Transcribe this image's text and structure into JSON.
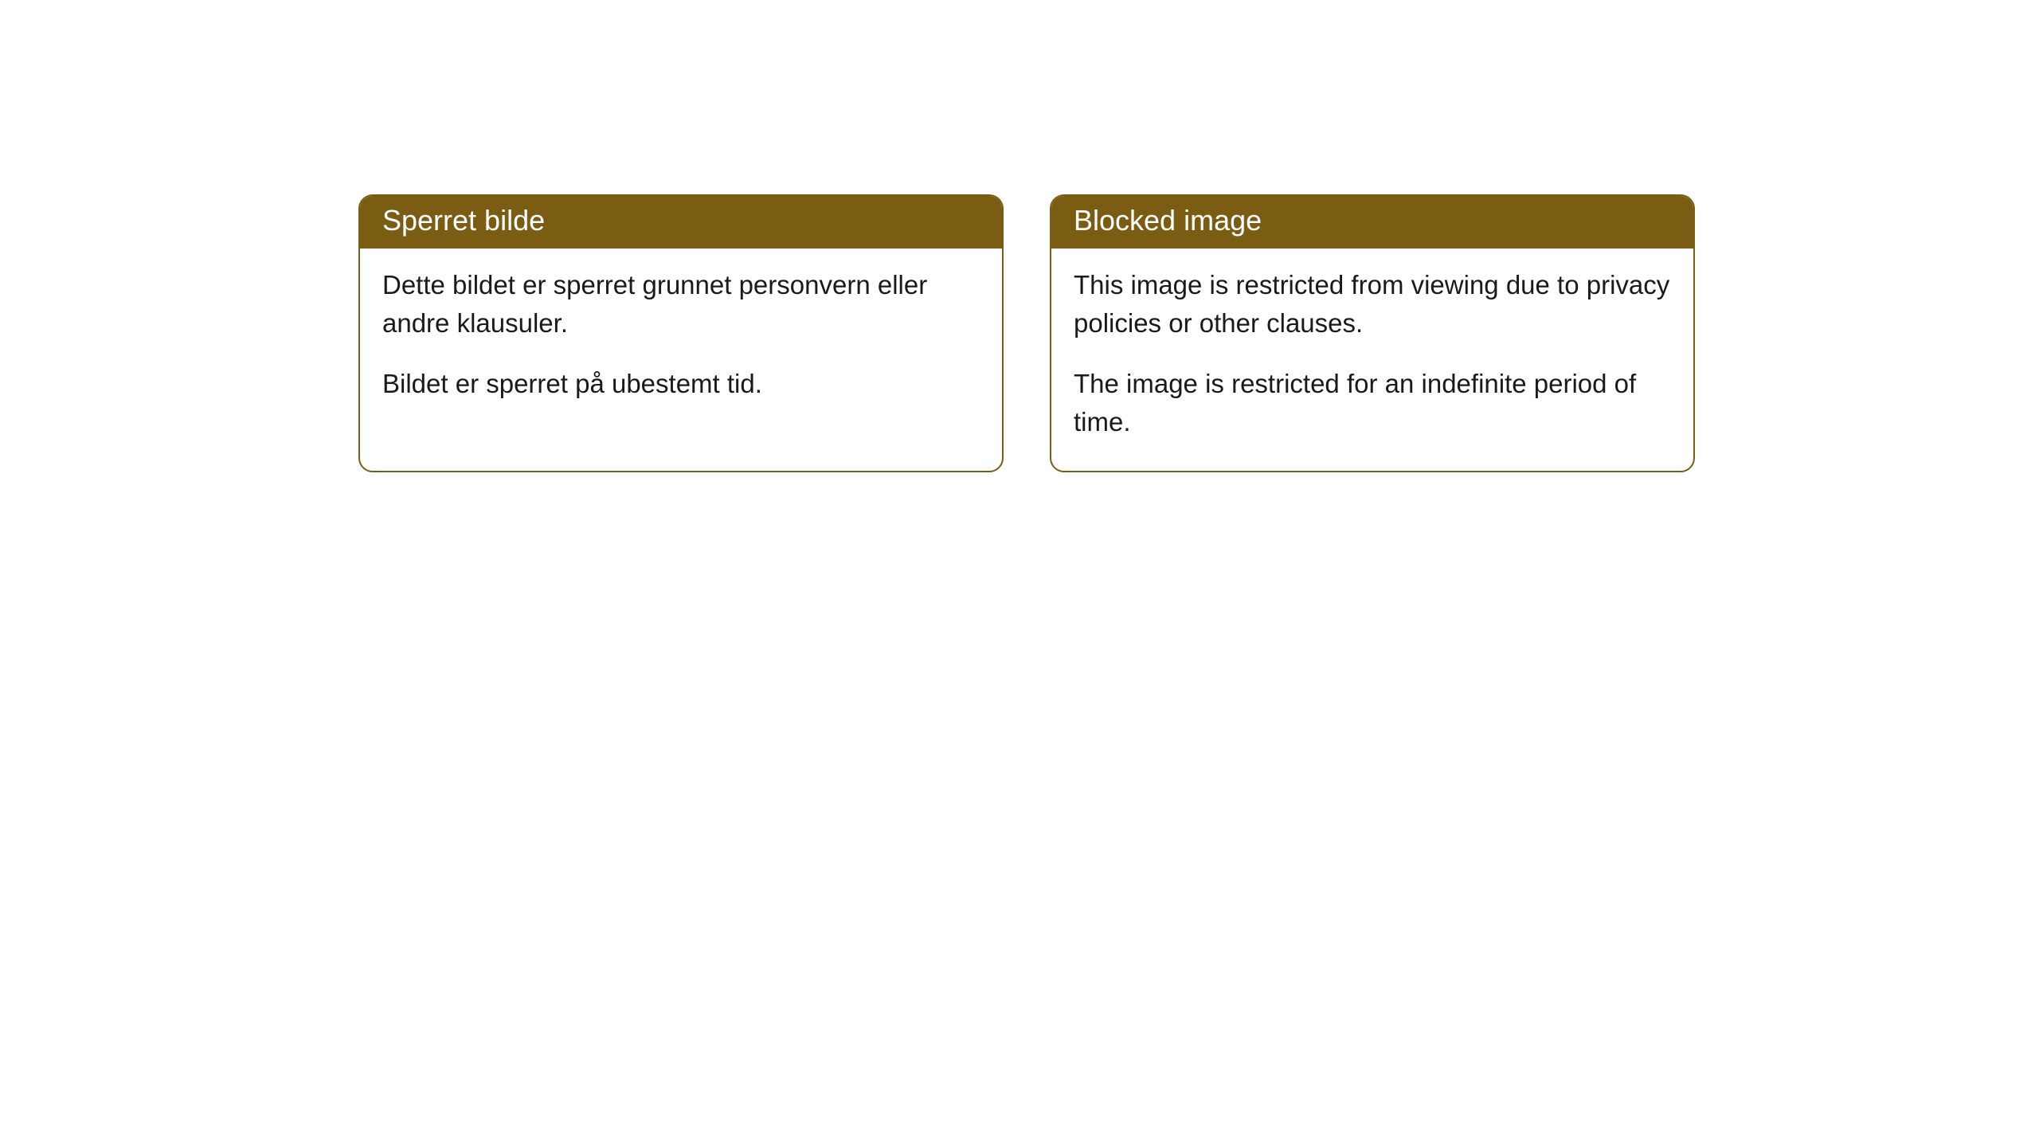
{
  "cards": [
    {
      "title": "Sperret bilde",
      "paragraph1": "Dette bildet er sperret grunnet personvern eller andre klausuler.",
      "paragraph2": "Bildet er sperret på ubestemt tid."
    },
    {
      "title": "Blocked image",
      "paragraph1": "This image is restricted from viewing due to privacy policies or other clauses.",
      "paragraph2": "The image is restricted for an indefinite period of time."
    }
  ],
  "styling": {
    "header_bg_color": "#7a5c13",
    "header_text_color": "#ffffff",
    "border_color": "#7a5c13",
    "body_bg_color": "#ffffff",
    "body_text_color": "#1a1a1a",
    "border_radius": 18,
    "header_fontsize": 36,
    "body_fontsize": 33
  }
}
